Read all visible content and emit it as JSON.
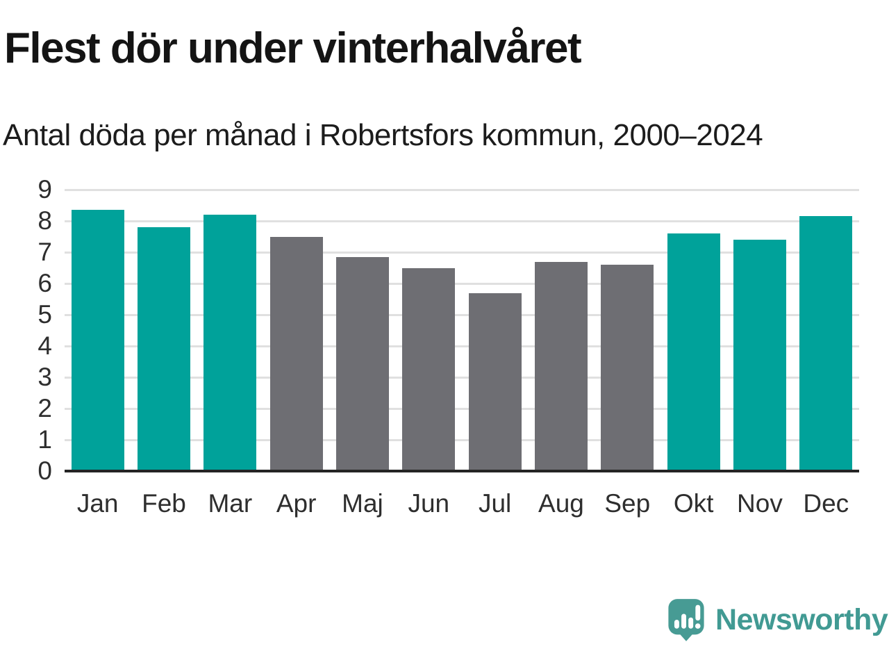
{
  "header": {
    "title": "Flest dör under vinterhalvåret",
    "subtitle": "Antal döda per månad i Robertsfors kommun, 2000–2024"
  },
  "chart_data": {
    "type": "bar",
    "categories": [
      "Jan",
      "Feb",
      "Mar",
      "Apr",
      "Maj",
      "Jun",
      "Jul",
      "Aug",
      "Sep",
      "Okt",
      "Nov",
      "Dec"
    ],
    "values": [
      8.35,
      7.8,
      8.2,
      7.5,
      6.85,
      6.5,
      5.7,
      6.7,
      6.6,
      7.6,
      7.4,
      8.15
    ],
    "bar_colors": [
      "teal",
      "teal",
      "teal",
      "gray",
      "gray",
      "gray",
      "gray",
      "gray",
      "gray",
      "teal",
      "teal",
      "teal"
    ],
    "title": "Flest dör under vinterhalvåret",
    "subtitle": "Antal döda per månad i Robertsfors kommun, 2000–2024",
    "xlabel": "",
    "ylabel": "",
    "ylim": [
      0,
      9
    ],
    "yticks": [
      0,
      1,
      2,
      3,
      4,
      5,
      6,
      7,
      8,
      9
    ],
    "grid": true,
    "legend": false
  },
  "colors": {
    "teal": "#00a29a",
    "gray": "#6e6e73",
    "grid": "#e0e0e0",
    "axis": "#242424",
    "logo": "#479b94"
  },
  "branding": {
    "name": "Newsworthy"
  }
}
